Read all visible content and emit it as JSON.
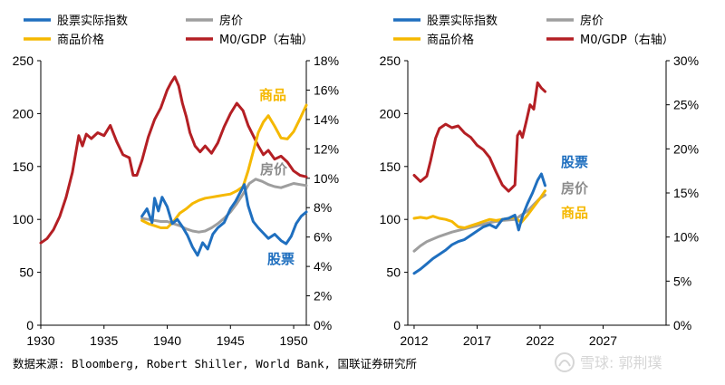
{
  "chart_data": [
    {
      "type": "line",
      "x_range": [
        1930,
        1951
      ],
      "x_ticks": [
        "1930",
        "1935",
        "1940",
        "1945",
        "1950"
      ],
      "y_left_range": [
        0,
        250
      ],
      "y_left_ticks": [
        "0",
        "50",
        "100",
        "150",
        "200",
        "250"
      ],
      "y_right_range": [
        0,
        18
      ],
      "y_right_ticks": [
        "0%",
        "2%",
        "4%",
        "6%",
        "8%",
        "10%",
        "12%",
        "14%",
        "16%",
        "18%"
      ],
      "series": [
        {
          "name": "股票实际指数",
          "axis": "left",
          "color": "#1f6fbf",
          "x": [
            1938,
            1938.4,
            1938.8,
            1939,
            1939.3,
            1939.6,
            1940,
            1940.4,
            1940.8,
            1941.2,
            1941.6,
            1942,
            1942.4,
            1942.8,
            1943.2,
            1943.6,
            1944,
            1944.5,
            1945,
            1945.4,
            1945.8,
            1946.1,
            1946.4,
            1946.8,
            1947.2,
            1947.6,
            1948,
            1948.5,
            1949,
            1949.4,
            1949.8,
            1950.2,
            1950.6,
            1951
          ],
          "values": [
            103,
            110,
            97,
            120,
            108,
            121,
            112,
            96,
            100,
            93,
            85,
            74,
            66,
            78,
            72,
            86,
            92,
            97,
            110,
            117,
            126,
            133,
            113,
            98,
            92,
            87,
            82,
            86,
            80,
            77,
            84,
            96,
            103,
            107
          ]
        },
        {
          "name": "房价",
          "axis": "left",
          "color": "#9e9e9e",
          "x": [
            1938,
            1938.5,
            1939,
            1939.5,
            1940,
            1940.5,
            1941,
            1941.5,
            1942,
            1942.5,
            1943,
            1943.5,
            1944,
            1944.5,
            1945,
            1945.5,
            1946,
            1946.5,
            1947,
            1947.5,
            1948,
            1948.5,
            1949,
            1949.5,
            1950,
            1950.5,
            1951
          ],
          "values": [
            101,
            100,
            99,
            98,
            98,
            96,
            94,
            91,
            89,
            88,
            89,
            92,
            96,
            101,
            107,
            115,
            124,
            134,
            138,
            136,
            133,
            131,
            130,
            132,
            134,
            133,
            132
          ]
        },
        {
          "name": "商品价格",
          "axis": "left",
          "color": "#f5b800",
          "x": [
            1938,
            1938.5,
            1939,
            1939.5,
            1940,
            1940.5,
            1941,
            1941.5,
            1942,
            1942.5,
            1943,
            1943.5,
            1944,
            1944.5,
            1945,
            1945.5,
            1946,
            1946.4,
            1946.8,
            1947.2,
            1947.6,
            1948,
            1948.5,
            1949,
            1949.5,
            1950,
            1950.5,
            1951
          ],
          "values": [
            99,
            96,
            94,
            92,
            92,
            98,
            106,
            110,
            115,
            118,
            120,
            121,
            122,
            123,
            124,
            127,
            131,
            146,
            164,
            182,
            192,
            198,
            188,
            177,
            176,
            183,
            195,
            208
          ]
        },
        {
          "name": "M0/GDP（右轴）",
          "axis": "right",
          "color": "#b41f24",
          "x": [
            1930,
            1930.5,
            1931,
            1931.5,
            1932,
            1932.5,
            1933,
            1933.3,
            1933.6,
            1934,
            1934.5,
            1935,
            1935.5,
            1936,
            1936.5,
            1937,
            1937.3,
            1937.6,
            1938,
            1938.5,
            1939,
            1939.5,
            1940,
            1940.3,
            1940.6,
            1940.9,
            1941.2,
            1941.5,
            1941.8,
            1942.2,
            1942.6,
            1943,
            1943.5,
            1944,
            1944.5,
            1945,
            1945.5,
            1946,
            1946.4,
            1946.8,
            1947.2,
            1947.6,
            1948,
            1948.5,
            1949,
            1949.5,
            1950,
            1950.5,
            1951
          ],
          "values": [
            5.6,
            5.9,
            6.5,
            7.4,
            8.7,
            10.4,
            12.9,
            12.2,
            13.0,
            12.7,
            13.1,
            12.9,
            13.6,
            12.5,
            11.6,
            11.4,
            10.2,
            10.2,
            11.2,
            12.8,
            14.0,
            14.8,
            16.0,
            16.5,
            16.9,
            16.3,
            15.1,
            14.2,
            13.1,
            12.2,
            11.8,
            12.2,
            11.7,
            12.4,
            13.5,
            14.4,
            15.1,
            14.6,
            13.6,
            12.9,
            12.2,
            11.6,
            11.9,
            11.3,
            11.5,
            11.1,
            10.5,
            10.2,
            10.1
          ]
        }
      ],
      "annotations": {
        "commodity": "商品",
        "housing": "房价",
        "stocks": "股票"
      }
    },
    {
      "type": "line",
      "x_range": [
        2011.5,
        2032
      ],
      "x_ticks": [
        "2012",
        "2017",
        "2022",
        "2027"
      ],
      "y_left_range": [
        0,
        250
      ],
      "y_left_ticks": [
        "0",
        "50",
        "100",
        "150",
        "200",
        "250"
      ],
      "y_right_range": [
        0,
        30
      ],
      "y_right_ticks": [
        "0%",
        "5%",
        "10%",
        "15%",
        "20%",
        "25%",
        "30%"
      ],
      "series": [
        {
          "name": "股票实际指数",
          "axis": "left",
          "color": "#1f6fbf",
          "x": [
            2012,
            2012.5,
            2013,
            2013.5,
            2014,
            2014.5,
            2015,
            2015.5,
            2016,
            2016.5,
            2017,
            2017.5,
            2018,
            2018.5,
            2019,
            2019.5,
            2020,
            2020.3,
            2020.6,
            2021,
            2021.4,
            2021.8,
            2022.1,
            2022.4
          ],
          "values": [
            49,
            53,
            58,
            63,
            67,
            71,
            76,
            79,
            81,
            85,
            89,
            93,
            95,
            92,
            100,
            101,
            104,
            90,
            103,
            115,
            125,
            137,
            143,
            132
          ]
        },
        {
          "name": "房价",
          "axis": "left",
          "color": "#9e9e9e",
          "x": [
            2012,
            2012.5,
            2013,
            2014,
            2015,
            2016,
            2017,
            2018,
            2019,
            2020,
            2020.5,
            2021,
            2021.5,
            2022,
            2022.4
          ],
          "values": [
            70,
            75,
            79,
            84,
            88,
            91,
            94,
            97,
            99,
            100,
            104,
            108,
            114,
            120,
            123
          ]
        },
        {
          "name": "商品价格",
          "axis": "left",
          "color": "#f5b800",
          "x": [
            2012,
            2012.5,
            2013,
            2013.5,
            2014,
            2014.5,
            2015,
            2015.5,
            2016,
            2016.5,
            2017,
            2017.5,
            2018,
            2018.5,
            2019,
            2019.5,
            2020,
            2020.5,
            2021,
            2021.5,
            2022,
            2022.4
          ],
          "values": [
            101,
            102,
            101,
            103,
            101,
            100,
            98,
            93,
            92,
            94,
            96,
            98,
            100,
            99,
            100,
            101,
            102,
            97,
            104,
            112,
            120,
            127
          ]
        },
        {
          "name": "M0/GDP（右轴）",
          "axis": "right",
          "color": "#b41f24",
          "x": [
            2012,
            2012.5,
            2013,
            2013.3,
            2013.7,
            2014,
            2014.5,
            2015,
            2015.5,
            2016,
            2016.5,
            2017,
            2017.5,
            2018,
            2018.5,
            2019,
            2019.5,
            2020,
            2020.2,
            2020.4,
            2020.6,
            2020.9,
            2021.2,
            2021.5,
            2021.8,
            2022.1,
            2022.4
          ],
          "values": [
            17.0,
            16.3,
            16.9,
            18.6,
            21.2,
            22.3,
            22.8,
            22.4,
            22.6,
            21.8,
            21.3,
            20.4,
            19.9,
            19.0,
            17.4,
            15.9,
            15.2,
            15.9,
            21.5,
            22.0,
            21.3,
            23.1,
            25.0,
            24.5,
            27.5,
            26.9,
            26.5
          ]
        }
      ],
      "annotations": {
        "stocks": "股票",
        "housing": "房价",
        "commodity": "商品"
      }
    }
  ],
  "legend_left": [
    {
      "label": "股票实际指数",
      "color": "#1f6fbf"
    },
    {
      "label": "房价",
      "color": "#9e9e9e"
    },
    {
      "label": "商品价格",
      "color": "#f5b800"
    },
    {
      "label": "M0/GDP（右轴）",
      "color": "#b41f24"
    }
  ],
  "legend_right": [
    {
      "label": "股票实际指数",
      "color": "#1f6fbf"
    },
    {
      "label": "房价",
      "color": "#9e9e9e"
    },
    {
      "label": "商品价格",
      "color": "#f5b800"
    },
    {
      "label": "M0/GDP（右轴）",
      "color": "#b41f24"
    }
  ],
  "source": "数据来源: Bloomberg, Robert Shiller, World Bank, 国联证券研究所",
  "watermark": "雪球: 郭荆璞"
}
